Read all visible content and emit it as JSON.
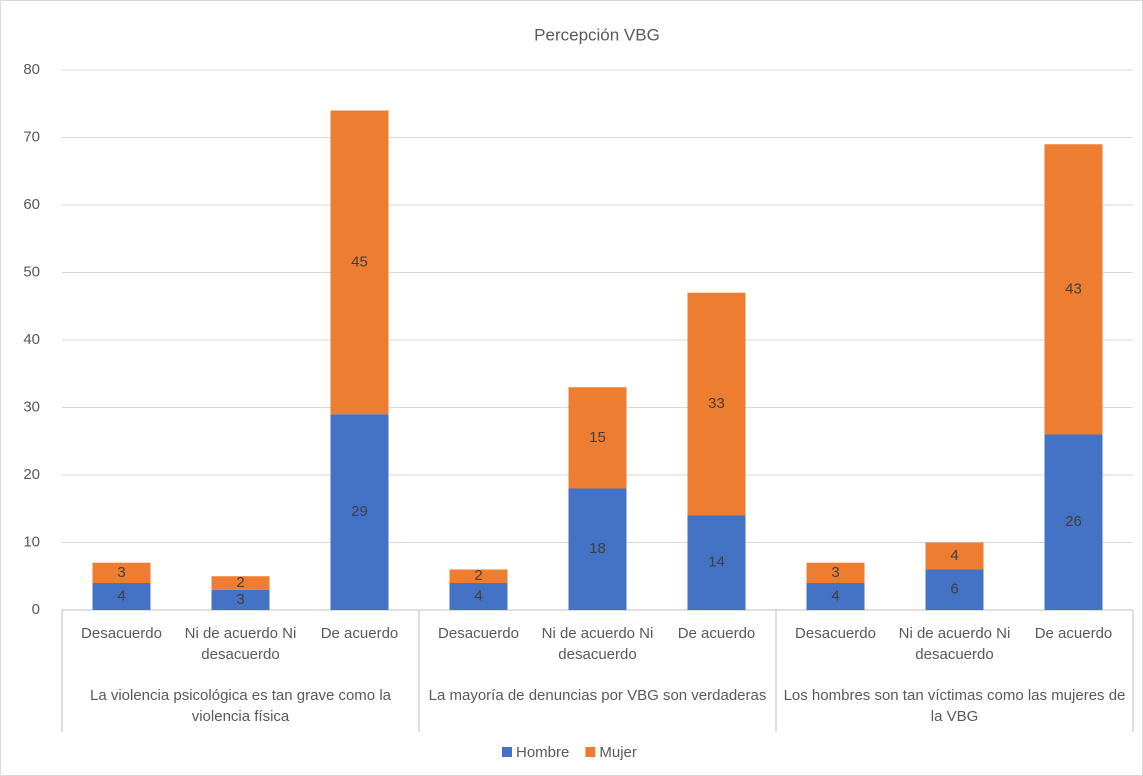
{
  "chart_data": {
    "type": "stacked_bar",
    "title": "Percepción VBG",
    "groups": [
      "La violencia psicológica es tan grave como la violencia física",
      "La mayoría de denuncias por VBG son verdaderas",
      "Los hombres son tan víctimas como las mujeres de la VBG"
    ],
    "categories": [
      "Desacuerdo",
      "Ni de acuerdo Ni desacuerdo",
      "De acuerdo",
      "Desacuerdo",
      "Ni de acuerdo Ni desacuerdo",
      "De acuerdo",
      "Desacuerdo",
      "Ni de acuerdo Ni desacuerdo",
      "De acuerdo"
    ],
    "series": [
      {
        "name": "Hombre",
        "color": "#4472c4",
        "values": [
          4,
          3,
          29,
          4,
          18,
          14,
          4,
          6,
          26
        ]
      },
      {
        "name": "Mujer",
        "color": "#ed7d31",
        "values": [
          3,
          2,
          45,
          2,
          15,
          33,
          3,
          4,
          43
        ]
      }
    ],
    "ylim": [
      0,
      80
    ],
    "yticks": [
      0,
      10,
      20,
      30,
      40,
      50,
      60,
      70,
      80
    ],
    "grid": true,
    "legend": "bottom",
    "data_labels": true
  }
}
